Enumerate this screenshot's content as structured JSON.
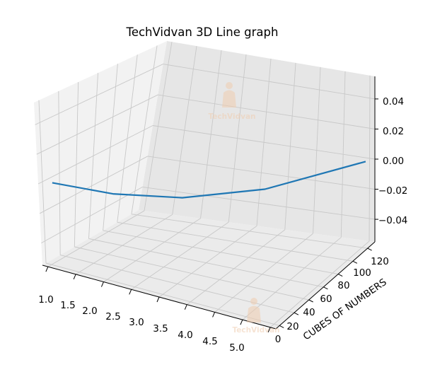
{
  "chart_data": {
    "type": "line3d",
    "title": "TechVidvan 3D Line graph",
    "xlabel": "",
    "ylabel": "CUBES OF NUMBERS",
    "zlabel": "",
    "x": [
      1,
      2,
      3,
      4,
      5
    ],
    "y": [
      1,
      8,
      27,
      64,
      125
    ],
    "z": [
      0,
      0,
      0,
      0,
      0
    ],
    "xlim": [
      0.9,
      5.1
    ],
    "ylim": [
      -5,
      130
    ],
    "zlim": [
      -0.055,
      0.055
    ],
    "x_ticks": [
      "1.0",
      "1.5",
      "2.0",
      "2.5",
      "3.0",
      "3.5",
      "4.0",
      "4.5",
      "5.0"
    ],
    "y_ticks": [
      "0",
      "20",
      "40",
      "60",
      "80",
      "100",
      "120"
    ],
    "z_ticks": [
      "−0.04",
      "−0.02",
      "0.00",
      "0.02",
      "0.04"
    ],
    "line_color": "#1f77b4",
    "grid": true,
    "pane_colors": [
      "#f2f2f2",
      "#e6e6e6",
      "#ebebeb"
    ]
  },
  "watermarks": [
    {
      "text": "TechVidvan",
      "color": "#f0cdb0"
    },
    {
      "text": "TechVidvan",
      "color": "#f0cdb0"
    }
  ]
}
